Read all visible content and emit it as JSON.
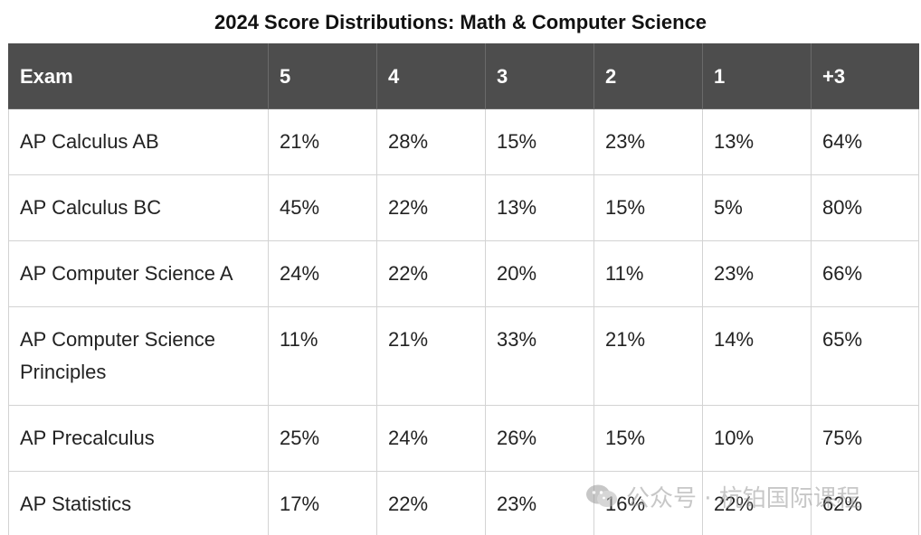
{
  "title": "2024 Score Distributions: Math & Computer Science",
  "table": {
    "headers": [
      "Exam",
      "5",
      "4",
      "3",
      "2",
      "1",
      "+3"
    ],
    "rows": [
      {
        "exam": "AP Calculus AB",
        "values": [
          "21%",
          "28%",
          "15%",
          "23%",
          "13%",
          "64%"
        ]
      },
      {
        "exam": "AP Calculus BC",
        "values": [
          "45%",
          "22%",
          "13%",
          "15%",
          "5%",
          "80%"
        ]
      },
      {
        "exam": "AP Computer Science A",
        "values": [
          "24%",
          "22%",
          "20%",
          "11%",
          "23%",
          "66%"
        ]
      },
      {
        "exam": "AP Computer Science Principles",
        "values": [
          "11%",
          "21%",
          "33%",
          "21%",
          "14%",
          "65%"
        ]
      },
      {
        "exam": "AP Precalculus",
        "values": [
          "25%",
          "24%",
          "26%",
          "15%",
          "10%",
          "75%"
        ]
      },
      {
        "exam": "AP Statistics",
        "values": [
          "17%",
          "22%",
          "23%",
          "16%",
          "22%",
          "62%"
        ]
      }
    ]
  },
  "watermark": {
    "text": "公众号 · 杭铂国际课程",
    "icon": "wechat-icon"
  },
  "chart_data": {
    "type": "table",
    "title": "2024 Score Distributions: Math & Computer Science",
    "columns": [
      "Exam",
      "5",
      "4",
      "3",
      "2",
      "1",
      "+3"
    ],
    "rows": [
      [
        "AP Calculus AB",
        "21%",
        "28%",
        "15%",
        "23%",
        "13%",
        "64%"
      ],
      [
        "AP Calculus BC",
        "45%",
        "22%",
        "13%",
        "15%",
        "5%",
        "80%"
      ],
      [
        "AP Computer Science A",
        "24%",
        "22%",
        "20%",
        "11%",
        "23%",
        "66%"
      ],
      [
        "AP Computer Science Principles",
        "11%",
        "21%",
        "33%",
        "21%",
        "14%",
        "65%"
      ],
      [
        "AP Precalculus",
        "25%",
        "24%",
        "26%",
        "15%",
        "10%",
        "75%"
      ],
      [
        "AP Statistics",
        "17%",
        "22%",
        "23%",
        "16%",
        "22%",
        "62%"
      ]
    ]
  }
}
